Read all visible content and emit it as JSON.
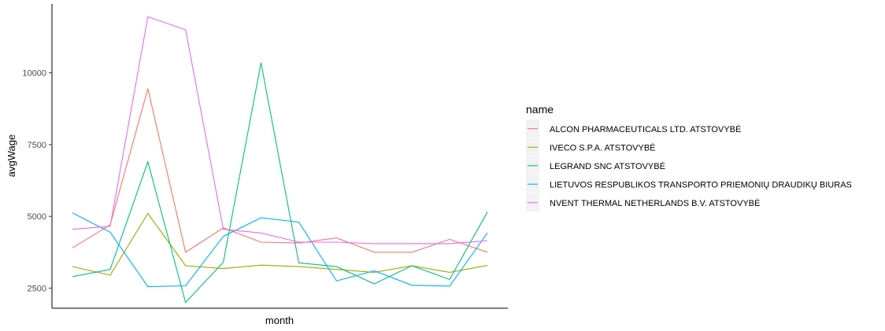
{
  "chart_data": {
    "type": "line",
    "title": "",
    "xlabel": "month",
    "ylabel": "avgWage",
    "x": [
      1,
      2,
      3,
      4,
      5,
      6,
      7,
      8,
      9,
      10,
      11,
      12
    ],
    "ylim": [
      1800,
      12400
    ],
    "yticks": [
      2500,
      5000,
      7500,
      10000
    ],
    "x_tick_labels": false,
    "grid": false,
    "legend_title": "name",
    "legend_position": "right",
    "series": [
      {
        "name": "ALCON PHARMACEUTICALS LTD. ATSTOVYBĖ",
        "color": "#F8766D",
        "values": [
          3900,
          4700,
          9450,
          3750,
          4600,
          4100,
          4070,
          4250,
          3750,
          3750,
          4200,
          3750
        ]
      },
      {
        "name": "IVECO S.P.A. ATSTOVYBĖ",
        "color": "#A3A500",
        "values": [
          3250,
          2950,
          5100,
          3280,
          3180,
          3300,
          3250,
          3150,
          3050,
          3280,
          3050,
          3290
        ]
      },
      {
        "name": "LEGRAND SNC ATSTOVYBĖ",
        "color": "#00BF7D",
        "values": [
          2900,
          3150,
          6900,
          2000,
          3400,
          10350,
          3380,
          3250,
          2650,
          3280,
          2800,
          5150
        ]
      },
      {
        "name": "LIETUVOS RESPUBLIKOS TRANSPORTO PRIEMONIŲ DRAUDIKŲ BIURAS",
        "color": "#00B0F6",
        "values": [
          5120,
          4450,
          2550,
          2580,
          4300,
          4950,
          4800,
          2750,
          3100,
          2600,
          2570,
          4420
        ]
      },
      {
        "name": "NVENT THERMAL NETHERLANDS B.V. ATSTOVYBĖ",
        "color": "#E76BF3",
        "values": [
          4550,
          4650,
          11950,
          11500,
          4550,
          4420,
          4100,
          4100,
          4050,
          4050,
          4050,
          4150
        ]
      }
    ]
  }
}
